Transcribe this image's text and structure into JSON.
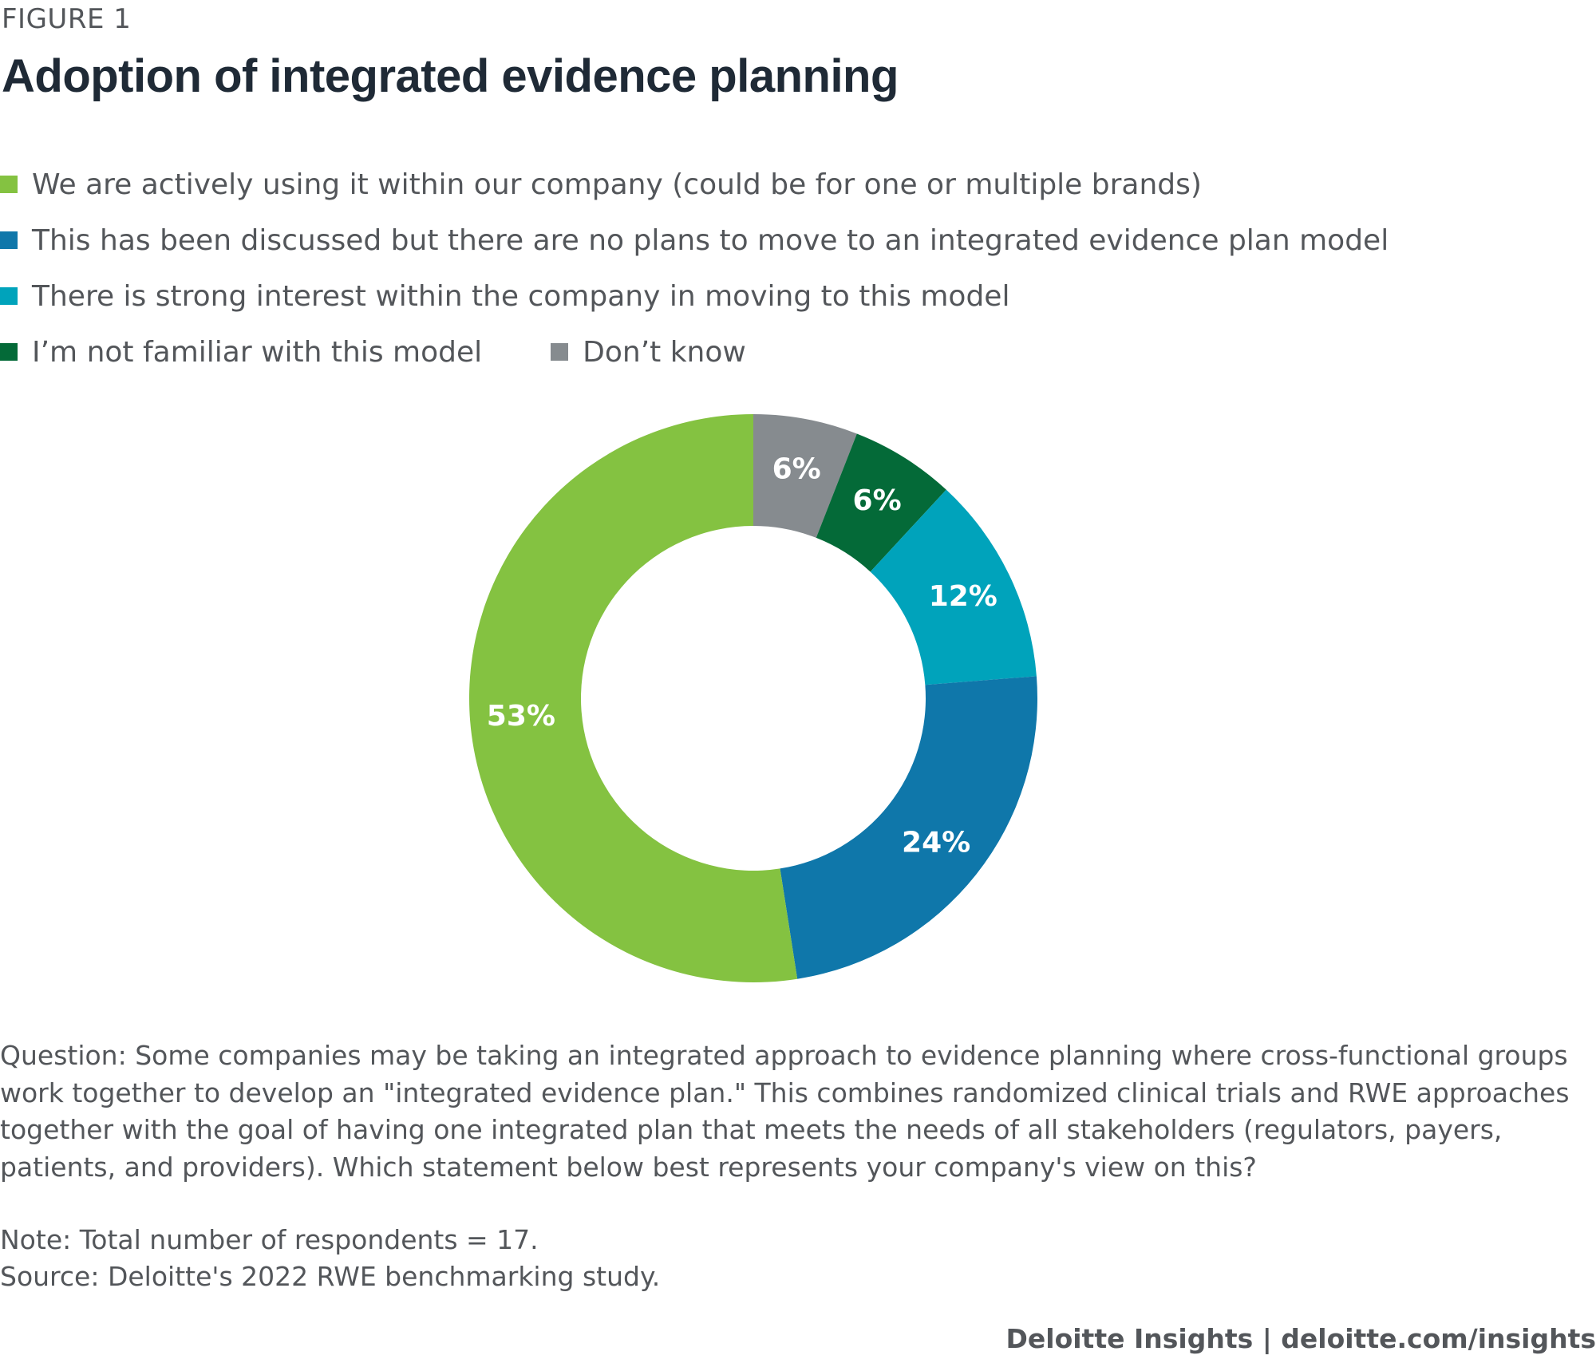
{
  "header": {
    "eyebrow": "FIGURE 1",
    "title": "Adoption of integrated evidence planning"
  },
  "chart_data": {
    "type": "pie",
    "variant": "donut",
    "title": "Adoption of integrated evidence planning",
    "slices": [
      {
        "name": "Don’t know",
        "value": 6,
        "label": "6%",
        "color": "#868b8f"
      },
      {
        "name": "I’m not familiar with this model",
        "value": 6,
        "label": "6%",
        "color": "#046a38"
      },
      {
        "name": "There is strong interest within the company in moving to this model",
        "value": 12,
        "label": "12%",
        "color": "#00a3bb"
      },
      {
        "name": "This has been discussed but there are no plans to move to an integrated evidence plan model",
        "value": 24,
        "label": "24%",
        "color": "#0f77aa"
      },
      {
        "name": "We are actively using it within our company (could be for one or multiple brands)",
        "value": 53,
        "label": "53%",
        "color": "#84c241"
      }
    ],
    "legend": [
      [
        "We are actively using it within our company (could be for one or multiple brands)"
      ],
      [
        "This has been discussed but there are no plans to move to an integrated evidence plan model"
      ],
      [
        "There is strong interest within the company in moving to this model"
      ],
      [
        "I’m not familiar with this model",
        "Don’t know"
      ]
    ],
    "legend_placement": "top-left"
  },
  "footer": {
    "question": "Question: Some companies may be taking an integrated approach to evidence planning where cross-functional groups work together to develop an \"integrated evidence plan.\" This combines randomized clinical trials and RWE approaches together with the goal of having one integrated plan that meets the needs of all stakeholders (regulators, payers, patients, and providers). Which statement below best represents your company's view on this?",
    "note": "Note: Total number of respondents = 17.",
    "source": "Source: Deloitte's 2022 RWE benchmarking study.",
    "brand": "Deloitte Insights | deloitte.com/insights"
  }
}
